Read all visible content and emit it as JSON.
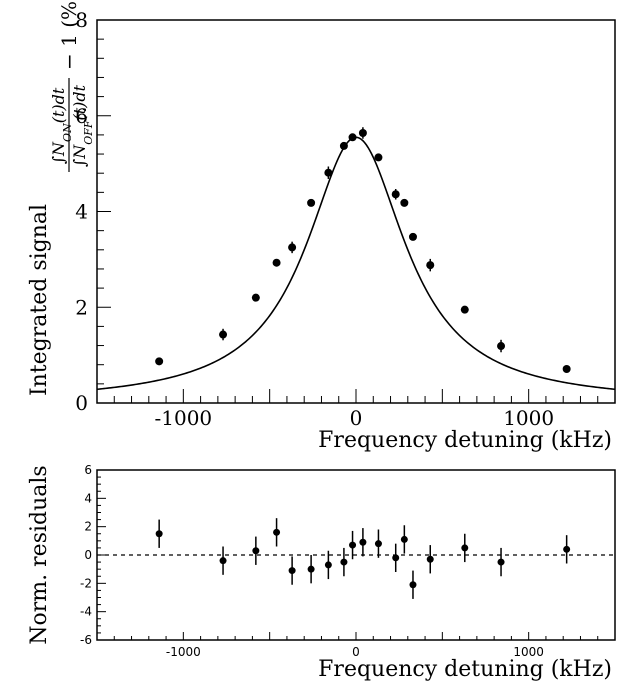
{
  "chart_data": [
    {
      "type": "scatter",
      "title": "",
      "xlabel": "Frequency detuning (kHz)",
      "ylabel": "Integrated signal",
      "ylabel_formula": "∫N_ON(t)dt / ∫N_OFF(t)dt − 1 (%)",
      "xlim": [
        -1500,
        1500
      ],
      "ylim": [
        0,
        8
      ],
      "xticks": [
        "-1000",
        "0",
        "1000"
      ],
      "yticks": [
        "0",
        "2",
        "4",
        "6",
        "8"
      ],
      "grid": false,
      "fit": {
        "shape": "lorentzian",
        "peak": 5.55,
        "center": 0,
        "fwhm": 700
      },
      "series": [
        {
          "values": [
            {
              "x": -1140,
              "y": 0.87,
              "err": 0.05
            },
            {
              "x": -770,
              "y": 1.43,
              "err": 0.12
            },
            {
              "x": -580,
              "y": 2.2,
              "err": 0.07
            },
            {
              "x": -460,
              "y": 2.93,
              "err": 0.07
            },
            {
              "x": -370,
              "y": 3.25,
              "err": 0.12
            },
            {
              "x": -260,
              "y": 4.18,
              "err": 0.07
            },
            {
              "x": -160,
              "y": 4.81,
              "err": 0.13
            },
            {
              "x": -70,
              "y": 5.37,
              "err": 0.07
            },
            {
              "x": -20,
              "y": 5.55,
              "err": 0.06
            },
            {
              "x": 40,
              "y": 5.64,
              "err": 0.12
            },
            {
              "x": 130,
              "y": 5.13,
              "err": 0.07
            },
            {
              "x": 230,
              "y": 4.36,
              "err": 0.11
            },
            {
              "x": 280,
              "y": 4.18,
              "err": 0.07
            },
            {
              "x": 330,
              "y": 3.47,
              "err": 0.07
            },
            {
              "x": 430,
              "y": 2.88,
              "err": 0.13
            },
            {
              "x": 630,
              "y": 1.95,
              "err": 0.06
            },
            {
              "x": 840,
              "y": 1.19,
              "err": 0.13
            },
            {
              "x": 1220,
              "y": 0.71,
              "err": 0.05
            }
          ]
        }
      ]
    },
    {
      "type": "scatter",
      "title": "",
      "xlabel": "Frequency detuning (kHz)",
      "ylabel": "Norm. residuals",
      "xlim": [
        -1500,
        1500
      ],
      "ylim": [
        -6,
        6
      ],
      "xticks": [
        "-1000",
        "0",
        "1000"
      ],
      "yticks": [
        "-6",
        "-4",
        "-2",
        "0",
        "2",
        "4",
        "6"
      ],
      "grid": false,
      "reference_line": {
        "y": 0,
        "style": "dashed"
      },
      "series": [
        {
          "values": [
            {
              "x": -1140,
              "y": 1.5,
              "err": 1
            },
            {
              "x": -770,
              "y": -0.4,
              "err": 1
            },
            {
              "x": -580,
              "y": 0.3,
              "err": 1
            },
            {
              "x": -460,
              "y": 1.6,
              "err": 1
            },
            {
              "x": -370,
              "y": -1.1,
              "err": 1
            },
            {
              "x": -260,
              "y": -1.0,
              "err": 1
            },
            {
              "x": -160,
              "y": -0.7,
              "err": 1
            },
            {
              "x": -70,
              "y": -0.5,
              "err": 1
            },
            {
              "x": -20,
              "y": 0.7,
              "err": 1
            },
            {
              "x": 40,
              "y": 0.9,
              "err": 1
            },
            {
              "x": 130,
              "y": 0.8,
              "err": 1
            },
            {
              "x": 230,
              "y": -0.2,
              "err": 1
            },
            {
              "x": 280,
              "y": 1.1,
              "err": 1
            },
            {
              "x": 330,
              "y": -2.1,
              "err": 1
            },
            {
              "x": 430,
              "y": -0.3,
              "err": 1
            },
            {
              "x": 630,
              "y": 0.5,
              "err": 1
            },
            {
              "x": 840,
              "y": -0.5,
              "err": 1
            },
            {
              "x": 1220,
              "y": 0.4,
              "err": 1
            }
          ]
        }
      ]
    }
  ]
}
